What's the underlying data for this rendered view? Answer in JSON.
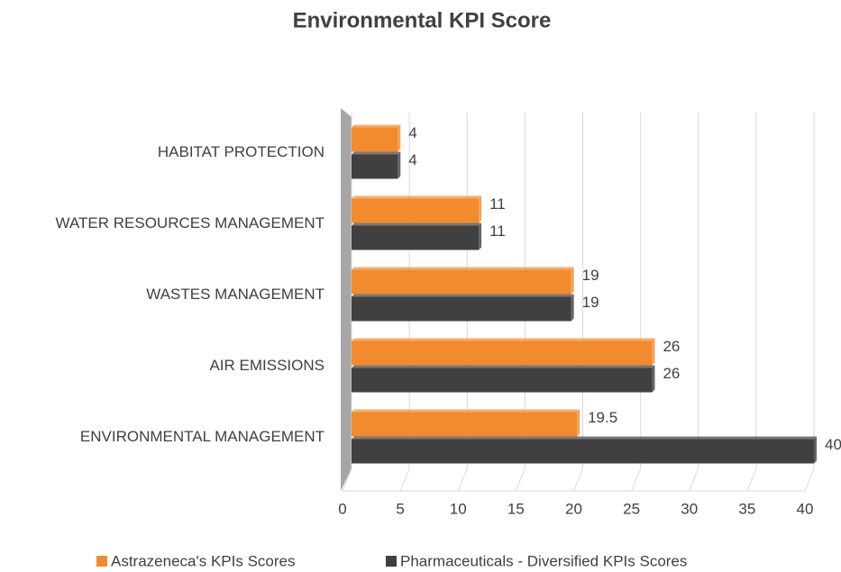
{
  "chart_data": {
    "type": "bar",
    "orientation": "horizontal",
    "title": "Environmental KPI Score",
    "categories": [
      "HABITAT PROTECTION",
      "WATER RESOURCES MANAGEMENT",
      "WASTES MANAGEMENT",
      "AIR EMISSIONS",
      "ENVIRONMENTAL MANAGEMENT"
    ],
    "series": [
      {
        "name": "Astrazeneca's KPIs Scores",
        "color": "#f28a2e",
        "values": [
          4,
          11,
          19,
          26,
          19.5
        ]
      },
      {
        "name": "Pharmaceuticals - Diversified KPIs Scores",
        "color": "#404040",
        "values": [
          4,
          11,
          19,
          26,
          40
        ]
      }
    ],
    "xlim": [
      0,
      40
    ],
    "xticks": [
      0,
      5,
      10,
      15,
      20,
      25,
      30,
      35,
      40
    ],
    "grid": true,
    "legend": "bottom"
  }
}
